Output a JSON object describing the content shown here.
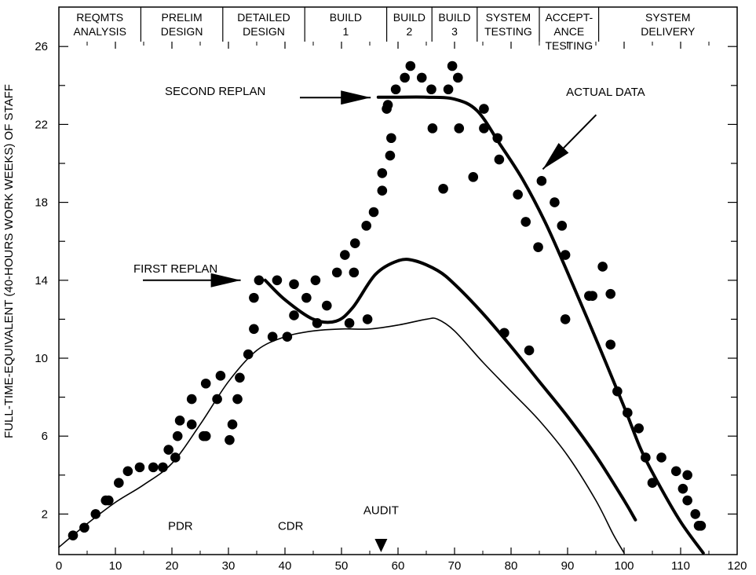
{
  "chart_data": {
    "type": "scatter",
    "title": "",
    "xlabel": "",
    "ylabel": "FULL-TIME-EQUIVALENT (40-HOURS WORK WEEKS) OF STAFF",
    "xlim": [
      0,
      120
    ],
    "ylim": [
      0,
      27
    ],
    "x_ticks": [
      0,
      10,
      20,
      30,
      40,
      50,
      60,
      70,
      80,
      90,
      100,
      110,
      120
    ],
    "y_ticks": [
      2,
      6,
      10,
      14,
      18,
      22,
      26
    ],
    "grid": false,
    "phases": [
      {
        "lines": [
          "REQMTS",
          "ANALYSIS"
        ],
        "start": 0,
        "end": 14.5
      },
      {
        "lines": [
          "PRELIM",
          "DESIGN"
        ],
        "start": 14.5,
        "end": 29
      },
      {
        "lines": [
          "DETAILED",
          "DESIGN"
        ],
        "start": 29,
        "end": 43.5
      },
      {
        "lines": [
          "BUILD",
          "1"
        ],
        "start": 43.5,
        "end": 58
      },
      {
        "lines": [
          "BUILD",
          "2"
        ],
        "start": 58,
        "end": 66
      },
      {
        "lines": [
          "BUILD",
          "3"
        ],
        "start": 66,
        "end": 74
      },
      {
        "lines": [
          "SYSTEM",
          "TESTING"
        ],
        "start": 74,
        "end": 85
      },
      {
        "lines": [
          "ACCEPT-",
          "ANCE",
          "TESTING"
        ],
        "start": 85,
        "end": 95.5
      },
      {
        "lines": [
          "SYSTEM",
          "DELIVERY"
        ],
        "start": 95.5,
        "end": 120
      }
    ],
    "series": [
      {
        "name": "ACTUAL DATA",
        "style": "points",
        "points": [
          [
            2.5,
            0.9
          ],
          [
            4.5,
            1.3
          ],
          [
            6.5,
            2.0
          ],
          [
            8.3,
            2.7
          ],
          [
            8.8,
            2.7
          ],
          [
            10.6,
            3.6
          ],
          [
            12.2,
            4.2
          ],
          [
            14.3,
            4.4
          ],
          [
            16.7,
            4.4
          ],
          [
            18.4,
            4.4
          ],
          [
            19.4,
            5.3
          ],
          [
            20.6,
            4.9
          ],
          [
            21.0,
            6.0
          ],
          [
            21.4,
            6.8
          ],
          [
            23.5,
            7.9
          ],
          [
            23.5,
            6.6
          ],
          [
            25.6,
            6.0
          ],
          [
            26.0,
            8.7
          ],
          [
            26.0,
            6.0
          ],
          [
            28.0,
            7.9
          ],
          [
            28.6,
            9.1
          ],
          [
            30.2,
            5.8
          ],
          [
            30.7,
            6.6
          ],
          [
            31.6,
            7.9
          ],
          [
            32.0,
            9.0
          ],
          [
            33.5,
            10.2
          ],
          [
            34.5,
            11.5
          ],
          [
            34.5,
            13.1
          ],
          [
            35.4,
            14.0
          ],
          [
            37.8,
            11.1
          ],
          [
            38.6,
            14.0
          ],
          [
            40.4,
            11.1
          ],
          [
            41.6,
            12.2
          ],
          [
            41.6,
            13.8
          ],
          [
            43.8,
            13.1
          ],
          [
            45.4,
            14.0
          ],
          [
            45.7,
            11.8
          ],
          [
            47.4,
            12.7
          ],
          [
            49.2,
            14.4
          ],
          [
            50.6,
            15.3
          ],
          [
            51.4,
            11.8
          ],
          [
            52.2,
            14.4
          ],
          [
            52.4,
            15.9
          ],
          [
            54.4,
            16.8
          ],
          [
            54.6,
            12.0
          ],
          [
            55.7,
            17.5
          ],
          [
            57.2,
            18.6
          ],
          [
            57.2,
            19.5
          ],
          [
            58.0,
            22.8
          ],
          [
            58.2,
            23.0
          ],
          [
            58.6,
            20.4
          ],
          [
            58.8,
            21.3
          ],
          [
            59.6,
            23.8
          ],
          [
            61.2,
            24.4
          ],
          [
            62.2,
            25.0
          ],
          [
            64.2,
            24.4
          ],
          [
            65.9,
            23.8
          ],
          [
            66.1,
            21.8
          ],
          [
            68.0,
            18.7
          ],
          [
            68.9,
            23.8
          ],
          [
            69.6,
            25.0
          ],
          [
            70.6,
            24.4
          ],
          [
            70.8,
            21.8
          ],
          [
            73.3,
            19.3
          ],
          [
            75.2,
            22.8
          ],
          [
            75.2,
            21.8
          ],
          [
            77.6,
            21.3
          ],
          [
            77.9,
            20.2
          ],
          [
            78.8,
            11.3
          ],
          [
            81.2,
            18.4
          ],
          [
            82.6,
            17.0
          ],
          [
            83.2,
            10.4
          ],
          [
            84.8,
            15.7
          ],
          [
            85.4,
            19.1
          ],
          [
            87.7,
            18.0
          ],
          [
            89.0,
            16.8
          ],
          [
            89.6,
            15.3
          ],
          [
            89.6,
            12.0
          ],
          [
            93.8,
            13.2
          ],
          [
            94.4,
            13.2
          ],
          [
            96.2,
            14.7
          ],
          [
            97.6,
            13.3
          ],
          [
            97.6,
            10.7
          ],
          [
            98.8,
            8.3
          ],
          [
            100.6,
            7.2
          ],
          [
            102.6,
            6.4
          ],
          [
            103.8,
            4.9
          ],
          [
            105.0,
            3.6
          ],
          [
            106.6,
            4.9
          ],
          [
            109.2,
            4.2
          ],
          [
            110.4,
            3.3
          ],
          [
            111.2,
            4.0
          ],
          [
            111.2,
            2.7
          ],
          [
            112.6,
            2.0
          ],
          [
            113.2,
            1.4
          ],
          [
            113.6,
            1.4
          ]
        ]
      },
      {
        "name": "",
        "style": "thin-line",
        "points": [
          [
            0,
            0.3
          ],
          [
            5,
            1.5
          ],
          [
            10,
            2.6
          ],
          [
            15,
            3.5
          ],
          [
            20,
            4.6
          ],
          [
            25,
            6.6
          ],
          [
            30,
            8.8
          ],
          [
            35,
            10.4
          ],
          [
            40,
            11.1
          ],
          [
            45,
            11.4
          ],
          [
            50,
            11.5
          ],
          [
            55,
            11.5
          ],
          [
            60,
            11.7
          ],
          [
            65,
            12.0
          ],
          [
            67,
            12.0
          ],
          [
            70,
            11.4
          ],
          [
            75,
            9.8
          ],
          [
            80,
            8.3
          ],
          [
            85,
            6.8
          ],
          [
            90,
            5.0
          ],
          [
            95,
            2.7
          ],
          [
            98,
            1.0
          ],
          [
            100,
            0.0
          ]
        ]
      },
      {
        "name": "FIRST REPLAN",
        "style": "thick-line",
        "points": [
          [
            36.5,
            14.0
          ],
          [
            40,
            13.0
          ],
          [
            45,
            12.0
          ],
          [
            49,
            11.9
          ],
          [
            52,
            12.6
          ],
          [
            56,
            14.3
          ],
          [
            60,
            15.0
          ],
          [
            63,
            15.0
          ],
          [
            67,
            14.5
          ],
          [
            70,
            13.8
          ],
          [
            75,
            12.3
          ],
          [
            80,
            10.6
          ],
          [
            85,
            8.8
          ],
          [
            90,
            7.0
          ],
          [
            95,
            5.0
          ],
          [
            100,
            2.7
          ],
          [
            102,
            1.7
          ]
        ]
      },
      {
        "name": "SECOND REPLAN",
        "style": "thick-line",
        "points": [
          [
            56.5,
            23.4
          ],
          [
            60,
            23.4
          ],
          [
            65,
            23.4
          ],
          [
            70,
            23.3
          ],
          [
            74,
            22.7
          ],
          [
            78,
            21.0
          ],
          [
            82,
            19.2
          ],
          [
            86,
            17.0
          ],
          [
            90,
            14.4
          ],
          [
            95,
            11.0
          ],
          [
            100,
            7.5
          ],
          [
            103,
            5.3
          ],
          [
            106,
            3.6
          ],
          [
            110,
            1.6
          ],
          [
            114,
            0.0
          ]
        ]
      }
    ],
    "annotations": [
      {
        "text": "SECOND REPLAN",
        "x": 46.0,
        "y": 23.7,
        "arrow_to": [
          56.0,
          23.5
        ]
      },
      {
        "text": "ACTUAL DATA",
        "x": 87.0,
        "y": 23.3,
        "arrow_to": [
          87.0,
          19.7
        ]
      },
      {
        "text": "FIRST REPLAN",
        "x": 26.0,
        "y": 14.6,
        "arrow_to": [
          33.0,
          14.0
        ]
      },
      {
        "text": "PDR",
        "x": 21.5,
        "y": 1.4
      },
      {
        "text": "CDR",
        "x": 41.0,
        "y": 1.4
      },
      {
        "text": "AUDIT",
        "x": 57.0,
        "y": 2.2,
        "marker_at": 57.0
      }
    ]
  }
}
